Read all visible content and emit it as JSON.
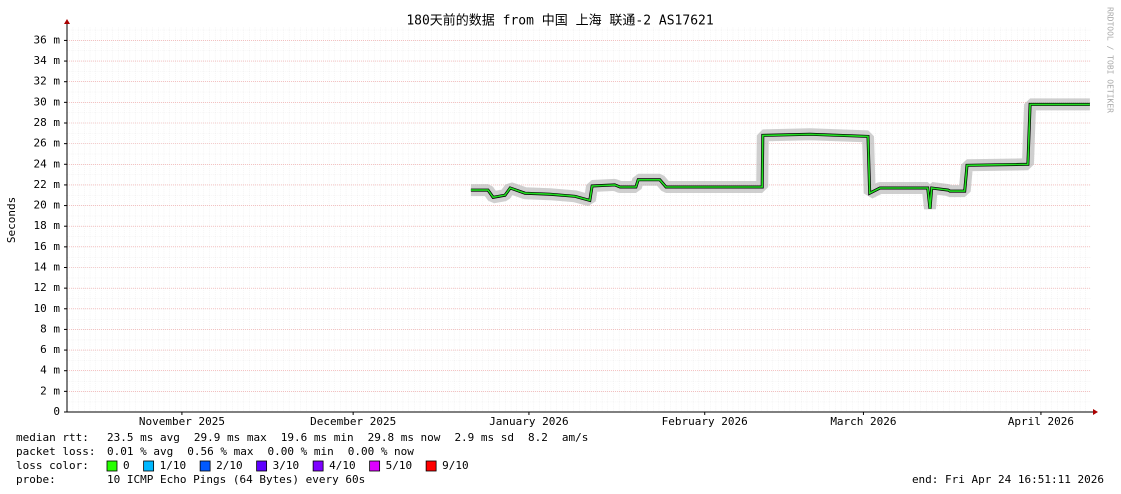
{
  "chart_data": {
    "type": "line",
    "title": "180天前的数据 from 中国 上海 联通-2 AS17621",
    "y_label": "Seconds",
    "watermark": "RRDTOOL / TOBI OETIKER",
    "xlim": [
      -180,
      0
    ],
    "xticks": [
      {
        "value": -159.8,
        "label": "November 2025"
      },
      {
        "value": -129.7,
        "label": "December 2025"
      },
      {
        "value": -98.8,
        "label": "January 2026"
      },
      {
        "value": -67.9,
        "label": "February 2026"
      },
      {
        "value": -40,
        "label": "March 2026"
      },
      {
        "value": -8.8,
        "label": "April 2026"
      }
    ],
    "ylim": [
      0,
      0.0373
    ],
    "yticks": [
      0,
      {
        "value": 0.002,
        "label": "2 m"
      },
      {
        "value": 0.004,
        "label": "4 m"
      },
      {
        "value": 0.006,
        "label": "6 m"
      },
      {
        "value": 0.008,
        "label": "8 m"
      },
      {
        "value": 0.01,
        "label": "10 m"
      },
      {
        "value": 0.012,
        "label": "12 m"
      },
      {
        "value": 0.014,
        "label": "14 m"
      },
      {
        "value": 0.016,
        "label": "16 m"
      },
      {
        "value": 0.018,
        "label": "18 m"
      },
      {
        "value": 0.02,
        "label": "20 m"
      },
      {
        "value": 0.022,
        "label": "22 m"
      },
      {
        "value": 0.024,
        "label": "24 m"
      },
      {
        "value": 0.026,
        "label": "26 m"
      },
      {
        "value": 0.028,
        "label": "28 m"
      },
      {
        "value": 0.03,
        "label": "30 m"
      },
      {
        "value": 0.032,
        "label": "32 m"
      },
      {
        "value": 0.034,
        "label": "34 m"
      },
      {
        "value": 0.036,
        "label": "36 m"
      }
    ],
    "grid": true,
    "x": [
      -109.0,
      -106.0,
      -105.1,
      -103.0,
      -102.1,
      -99.5,
      -95.1,
      -90.7,
      -88.1,
      -87.7,
      -83.7,
      -82.8,
      -80.0,
      -79.6,
      -75.8,
      -74.7,
      -68.7,
      -57.8,
      -57.7,
      -49.4,
      -39.2,
      -38.9,
      -37.1,
      -28.7,
      -28.3,
      -28.0,
      -25.1,
      -24.8,
      -22.2,
      -21.8,
      -11.1,
      -10.7,
      -0.2
    ],
    "series": [
      {
        "name": "median rtt:",
        "color": "#22dd22",
        "values": [
          0.0215,
          0.0215,
          0.0208,
          0.021,
          0.0217,
          0.0212,
          0.0211,
          0.0209,
          0.0205,
          0.0219,
          0.022,
          0.0218,
          0.0218,
          0.0225,
          0.0225,
          0.0218,
          0.0218,
          0.0218,
          0.0268,
          0.0269,
          0.0267,
          0.0212,
          0.0217,
          0.0217,
          0.0197,
          0.0217,
          0.0215,
          0.0214,
          0.0214,
          0.0239,
          0.024,
          0.0298,
          0.0298
        ]
      }
    ],
    "stats": [
      "23.5 ms avg",
      "29.9 ms max",
      "19.6 ms min",
      "29.8 ms now",
      "2.9 ms sd",
      "8.2",
      "am/s"
    ],
    "packet_loss": {
      "label": "packet loss:",
      "items": [
        "0.01 % avg",
        "0.56 % max",
        "0.00 % min",
        "0.00 % now"
      ]
    },
    "loss_color": {
      "label": "loss color:",
      "items": [
        {
          "label": "0",
          "color": "#26ff00"
        },
        {
          "label": "1/10",
          "color": "#00b8ff"
        },
        {
          "label": "2/10",
          "color": "#0059ff"
        },
        {
          "label": "3/10",
          "color": "#5e00ff"
        },
        {
          "label": "4/10",
          "color": "#7e00ff"
        },
        {
          "label": "5/10",
          "color": "#dd00ff"
        },
        {
          "label": "9/10",
          "color": "#ff0000"
        }
      ]
    },
    "probe": {
      "label": "probe:",
      "text": "10 ICMP Echo Pings (64 Bytes) every 60s"
    },
    "end": "end: Fri Apr 24 16:51:11 2026"
  }
}
